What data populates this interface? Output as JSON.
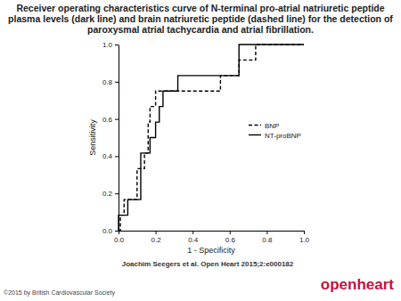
{
  "chart_data": {
    "type": "line",
    "title": "Receiver operating characteristics curve of N-terminal pro-atrial natriuretic peptide plasma levels (dark line) and brain natriuretic peptide (dashed line) for the detection of paroxysmal atrial tachycardia and atrial fibrillation.",
    "x_label": "1 - Specificity",
    "y_label": "Sensitivity",
    "source": "Joachim Seegers et al. Open Heart 2015;2:e000182",
    "copyright": "©2015 by British Cardiovascular Society",
    "logo": "openheart",
    "legend": "right",
    "xlim": [
      0,
      1
    ],
    "ylim": [
      0,
      1
    ],
    "xticks": [
      {
        "value": 0,
        "label": "0.0"
      },
      {
        "value": 0.2,
        "label": "0.2"
      },
      {
        "value": 0.4,
        "label": "0.4"
      },
      {
        "value": 0.6,
        "label": "0.6"
      },
      {
        "value": 0.8,
        "label": "0.8"
      },
      {
        "value": 1,
        "label": "1.0"
      }
    ],
    "yticks": [
      {
        "value": 0,
        "label": "0.0"
      },
      {
        "value": 0.2,
        "label": "0.2"
      },
      {
        "value": 0.4,
        "label": "0.4"
      },
      {
        "value": 0.6,
        "label": "0.6"
      },
      {
        "value": 0.8,
        "label": "0.8"
      },
      {
        "value": 1,
        "label": "1.0"
      }
    ],
    "series": [
      {
        "name": "BNP",
        "color": "#000000",
        "line_style": "dashed",
        "x": [
          0,
          0.01,
          0.01,
          0.03,
          0.03,
          0.1,
          0.1,
          0.14,
          0.14,
          0.16,
          0.16,
          0.17,
          0.17,
          0.2,
          0.2,
          0.55,
          0.55,
          0.65,
          0.65,
          0.74,
          0.74,
          1
        ],
        "values": [
          0,
          0,
          0.083,
          0.083,
          0.167,
          0.167,
          0.333,
          0.333,
          0.417,
          0.417,
          0.583,
          0.583,
          0.667,
          0.667,
          0.75,
          0.75,
          0.833,
          0.833,
          0.917,
          0.917,
          1,
          1
        ]
      },
      {
        "name": "NT-proBNP",
        "color": "#000000",
        "line_style": "solid",
        "x": [
          0,
          0,
          0.05,
          0.05,
          0.12,
          0.12,
          0.17,
          0.17,
          0.2,
          0.2,
          0.22,
          0.22,
          0.24,
          0.24,
          0.32,
          0.32,
          0.65,
          0.65,
          1
        ],
        "values": [
          0,
          0.083,
          0.083,
          0.167,
          0.167,
          0.417,
          0.417,
          0.5,
          0.5,
          0.583,
          0.583,
          0.667,
          0.667,
          0.75,
          0.75,
          0.833,
          0.833,
          1,
          1
        ]
      }
    ]
  }
}
